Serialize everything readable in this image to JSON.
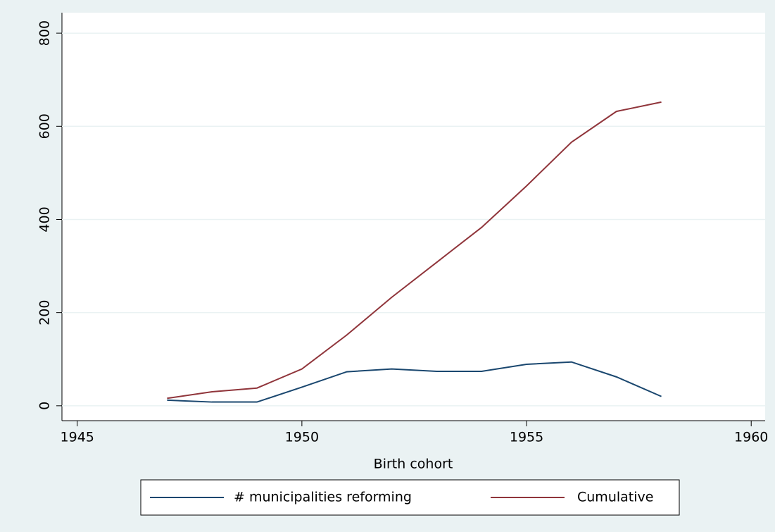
{
  "chart_data": {
    "type": "line",
    "xlabel": "Birth cohort",
    "x": [
      1947,
      1948,
      1949,
      1950,
      1951,
      1952,
      1953,
      1954,
      1955,
      1956,
      1957,
      1958
    ],
    "series": [
      {
        "name": "# municipalities reforming",
        "color": "#1a476f",
        "values": [
          12,
          8,
          8,
          40,
          73,
          79,
          74,
          74,
          89,
          94,
          62,
          20
        ]
      },
      {
        "name": "Cumulative",
        "color": "#90353b",
        "values": [
          16,
          30,
          38,
          79,
          152,
          233,
          308,
          383,
          472,
          566,
          632,
          652
        ]
      }
    ],
    "xlim": [
      1944.66,
      1960.31
    ],
    "xticks": [
      1945,
      1950,
      1955,
      1960
    ],
    "ylim": [
      -32,
      844
    ],
    "yticks": [
      0,
      200,
      400,
      600,
      800
    ],
    "grid": true,
    "legend": "bottom"
  }
}
